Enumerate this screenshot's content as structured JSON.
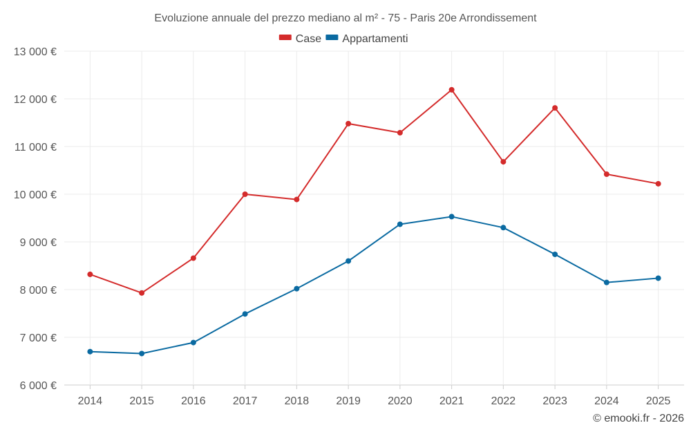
{
  "chart_data": {
    "type": "line",
    "title": "Evoluzione annuale del prezzo mediano al m² - 75 - Paris 20e Arrondissement",
    "categories": [
      "2014",
      "2015",
      "2016",
      "2017",
      "2018",
      "2019",
      "2020",
      "2021",
      "2022",
      "2023",
      "2024",
      "2025"
    ],
    "series": [
      {
        "name": "Case",
        "color": "#d42b2b",
        "values": [
          8320,
          7930,
          8660,
          10000,
          9890,
          11480,
          11290,
          12190,
          10680,
          11810,
          10420,
          10220
        ]
      },
      {
        "name": "Appartamenti",
        "color": "#0a6aa1",
        "values": [
          6700,
          6660,
          6890,
          7490,
          8020,
          8600,
          9370,
          9530,
          9300,
          8740,
          8150,
          8240
        ]
      }
    ],
    "ylim": [
      6000,
      13000
    ],
    "yticks": [
      6000,
      7000,
      8000,
      9000,
      10000,
      11000,
      12000,
      13000
    ],
    "ytick_labels": [
      "6 000 €",
      "7 000 €",
      "8 000 €",
      "9 000 €",
      "10 000 €",
      "11 000 €",
      "12 000 €",
      "13 000 €"
    ],
    "legend_position": "top-center",
    "grid": true
  },
  "credit": "© emooki.fr - 2026"
}
